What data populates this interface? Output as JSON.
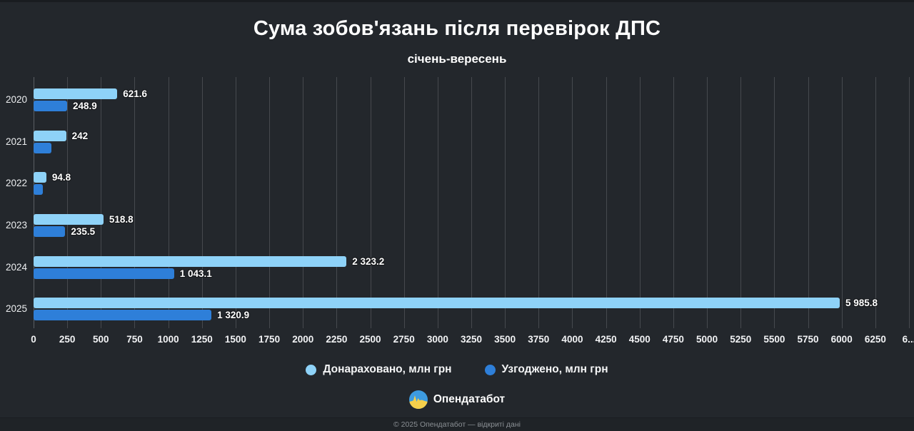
{
  "header": {
    "title": "Сума зобов'язань після перевірок ДПС",
    "subtitle": "січень-вересень"
  },
  "chart_data": {
    "type": "bar",
    "orientation": "horizontal",
    "categories": [
      "2020",
      "2021",
      "2022",
      "2023",
      "2024",
      "2025"
    ],
    "series": [
      {
        "key": "donarahovano",
        "name": "Донараховано, млн грн",
        "color": "#8ed2f8",
        "values": [
          621.6,
          242,
          94.8,
          518.8,
          2323.2,
          5985.8
        ],
        "labels": [
          "621.6",
          "242",
          "94.8",
          "518.8",
          "2 323.2",
          "5 985.8"
        ]
      },
      {
        "key": "uzhodzheno",
        "name": "Узгоджено, млн грн",
        "color": "#2e7fd9",
        "values": [
          248.9,
          135,
          70,
          235.5,
          1043.1,
          1320.9
        ],
        "labels": [
          "248.9",
          "",
          "",
          "235.5",
          "1 043.1",
          "1 320.9"
        ]
      }
    ],
    "xlim": [
      0,
      6500
    ],
    "tick_step": 250,
    "x_ticks": [
      "0",
      "250",
      "500",
      "750",
      "1000",
      "1250",
      "1500",
      "1750",
      "2000",
      "2250",
      "2500",
      "2750",
      "3000",
      "3250",
      "3500",
      "3750",
      "4000",
      "4250",
      "4500",
      "4750",
      "5000",
      "5250",
      "5500",
      "5750",
      "6000",
      "6250",
      "6..."
    ],
    "grid": true,
    "legend_position": "bottom",
    "background": "#23272c"
  },
  "footer": {
    "brand": "Опендатабот",
    "copyright": "© 2025 Опендатабот — відкриті дані",
    "logo_colors": {
      "top": "#3d9be0",
      "bottom": "#f5d04b"
    }
  }
}
